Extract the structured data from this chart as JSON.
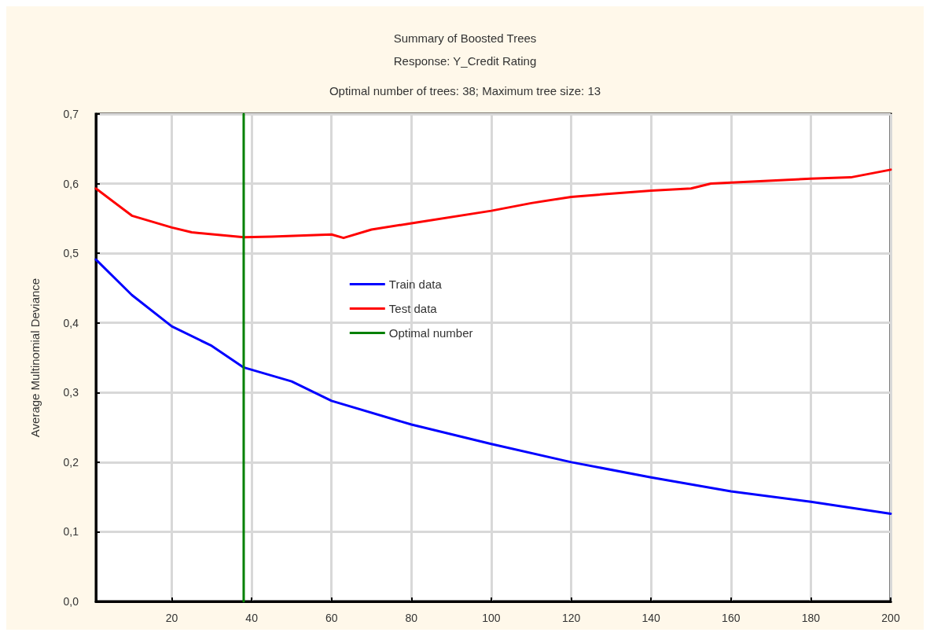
{
  "chart_data": {
    "type": "line",
    "title": "Summary of Boosted Trees",
    "subtitle": "Response: Y_Credit Rating",
    "annotations": [
      "Optimal number of trees: 38; Maximum tree size: 13"
    ],
    "ylabel": "Average Multinomial Deviance",
    "series": [
      {
        "name": "Train data",
        "color": "#0000ff",
        "x": [
          1,
          10,
          20,
          30,
          38,
          50,
          60,
          80,
          100,
          120,
          140,
          160,
          180,
          200
        ],
        "values": [
          0.491,
          0.44,
          0.395,
          0.367,
          0.336,
          0.316,
          0.288,
          0.254,
          0.226,
          0.2,
          0.178,
          0.158,
          0.143,
          0.126
        ]
      },
      {
        "name": "Test data",
        "color": "#ff0000",
        "x": [
          1,
          10,
          20,
          25,
          38,
          45,
          60,
          63,
          70,
          81,
          100,
          110,
          120,
          140,
          150,
          155,
          180,
          190,
          200
        ],
        "values": [
          0.593,
          0.554,
          0.537,
          0.53,
          0.523,
          0.524,
          0.527,
          0.522,
          0.534,
          0.544,
          0.561,
          0.572,
          0.581,
          0.59,
          0.593,
          0.6,
          0.607,
          0.609,
          0.62
        ]
      },
      {
        "name": "Optimal number",
        "color": "#008000",
        "x": [
          38,
          38
        ],
        "values": [
          0,
          0.7
        ]
      }
    ],
    "xlim": [
      1,
      200
    ],
    "xticks": [
      20,
      40,
      60,
      80,
      100,
      120,
      140,
      160,
      180,
      200
    ],
    "ylim": [
      0,
      0.7
    ],
    "yticks": [
      {
        "value": 0,
        "label": "0,0"
      },
      {
        "value": 0.1,
        "label": "0,1"
      },
      {
        "value": 0.2,
        "label": "0,2"
      },
      {
        "value": 0.3,
        "label": "0,3"
      },
      {
        "value": 0.4,
        "label": "0,4"
      },
      {
        "value": 0.5,
        "label": "0,5"
      },
      {
        "value": 0.6,
        "label": "0,6"
      },
      {
        "value": 0.7,
        "label": "0,7"
      }
    ],
    "grid": true,
    "legend": "center",
    "marker": "none",
    "line_style": "solid"
  }
}
